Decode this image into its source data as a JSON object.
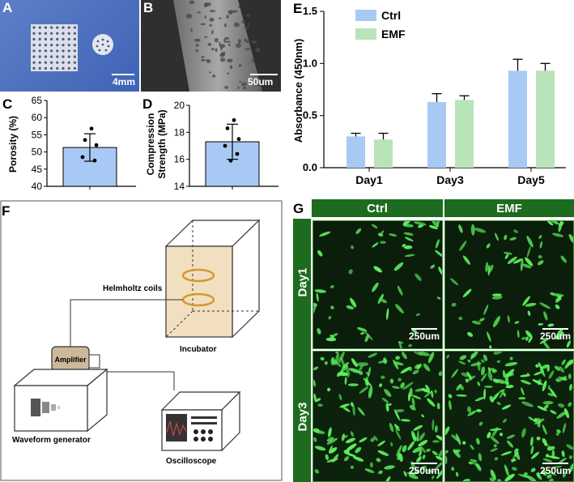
{
  "panels": {
    "A": {
      "label": "A",
      "scale": "4mm"
    },
    "B": {
      "label": "B",
      "scale": "50um"
    },
    "C": {
      "label": "C"
    },
    "D": {
      "label": "D"
    },
    "E": {
      "label": "E"
    },
    "F": {
      "label": "F"
    },
    "G": {
      "label": "G"
    }
  },
  "diagram": {
    "helmholtz_label": "Helmholtz coils",
    "incubator_label": "Incubator",
    "amplifier_label": "Amplifier",
    "waveform_label": "Waveform generator",
    "oscilloscope_label": "Oscilloscope"
  },
  "fluorescence": {
    "columns": [
      "Ctrl",
      "EMF"
    ],
    "rows": [
      "Day1",
      "Day3"
    ],
    "scale": "250um"
  },
  "colors": {
    "ctrl": "#a9c9f5",
    "emf": "#b9e3b9",
    "bar_c": "#a9c9f5",
    "header_green": "#1d6b1f"
  },
  "chart_data": [
    {
      "panel": "C",
      "type": "bar",
      "categories": [
        ""
      ],
      "values": [
        51.3
      ],
      "error": [
        4.0
      ],
      "points": [
        56.8,
        53.5,
        52.0,
        48.5,
        47.5
      ],
      "ylabel": "Porosity  (%)",
      "ylim": [
        40,
        65
      ],
      "yticks": [
        40,
        45,
        50,
        55,
        60,
        65
      ]
    },
    {
      "panel": "D",
      "type": "bar",
      "categories": [
        ""
      ],
      "values": [
        17.3
      ],
      "error": [
        1.3
      ],
      "points": [
        18.9,
        18.3,
        17.5,
        17.0,
        16.4,
        15.9
      ],
      "ylabel_lines": [
        "Compression",
        "Strength (MPa)"
      ],
      "ylim": [
        14,
        20
      ],
      "yticks": [
        14,
        16,
        18,
        20
      ]
    },
    {
      "panel": "E",
      "type": "bar",
      "categories": [
        "Day1",
        "Day3",
        "Day5"
      ],
      "series": [
        {
          "name": "Ctrl",
          "values": [
            0.3,
            0.63,
            0.93
          ],
          "error": [
            0.03,
            0.08,
            0.11
          ]
        },
        {
          "name": "EMF",
          "values": [
            0.27,
            0.65,
            0.93
          ],
          "error": [
            0.06,
            0.04,
            0.07
          ]
        }
      ],
      "ylabel": "Absorbance (450nm)",
      "ylim": [
        0,
        1.5
      ],
      "yticks": [
        "0.0",
        "0.5",
        "1.0",
        "1.5"
      ],
      "legend": "top-left"
    }
  ]
}
